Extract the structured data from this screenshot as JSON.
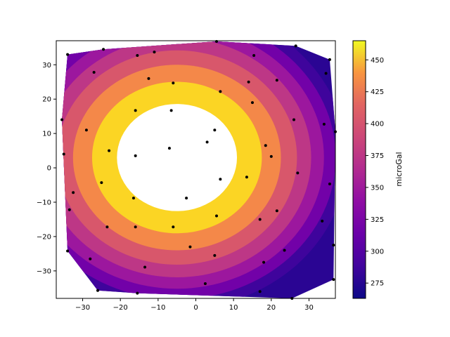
{
  "chart_data": {
    "type": "filled-contour",
    "title": "",
    "xlabel": "",
    "ylabel": "",
    "xlim": [
      -37,
      37
    ],
    "ylim": [
      -38,
      37
    ],
    "x_ticks": [
      -30,
      -20,
      -10,
      0,
      10,
      20,
      30
    ],
    "y_ticks": [
      -30,
      -20,
      -10,
      0,
      10,
      20,
      30
    ],
    "colorbar": {
      "label": "microGal",
      "colormap": "plasma",
      "range": [
        263,
        465
      ],
      "ticks": [
        275,
        300,
        325,
        350,
        375,
        400,
        425,
        450
      ]
    },
    "levels": [
      {
        "value": 290,
        "color": "#3f049c"
      },
      {
        "value": 315,
        "color": "#7201a8"
      },
      {
        "value": 340,
        "color": "#9c179e"
      },
      {
        "value": 365,
        "color": "#bd3786"
      },
      {
        "value": 390,
        "color": "#d8576b"
      },
      {
        "value": 415,
        "color": "#f48849"
      },
      {
        "value": 440,
        "color": "#fbd524"
      },
      {
        "value": 465,
        "color": "#ffffff"
      }
    ],
    "field_model": {
      "center": [
        -5,
        3
      ],
      "peak": 465,
      "edge": 265
    },
    "points": [
      [
        -34,
        33
      ],
      [
        -24.5,
        34.5
      ],
      [
        -15.5,
        32.7
      ],
      [
        -11,
        33.7
      ],
      [
        5.5,
        36.8
      ],
      [
        15.4,
        32.7
      ],
      [
        26.5,
        35.5
      ],
      [
        35.5,
        31.5
      ],
      [
        34.5,
        27.5
      ],
      [
        -27,
        27.8
      ],
      [
        -12.5,
        26
      ],
      [
        -6,
        24.7
      ],
      [
        6.5,
        22.2
      ],
      [
        14,
        25
      ],
      [
        21.5,
        25.5
      ],
      [
        -35.5,
        14
      ],
      [
        -29,
        11
      ],
      [
        -16,
        16.7
      ],
      [
        -6.5,
        16.7
      ],
      [
        15,
        19
      ],
      [
        26,
        14
      ],
      [
        34,
        12.7
      ],
      [
        37,
        10.5
      ],
      [
        -35,
        4
      ],
      [
        -23,
        5
      ],
      [
        -16,
        3.5
      ],
      [
        -7,
        5.7
      ],
      [
        3,
        7.5
      ],
      [
        5,
        11
      ],
      [
        18.5,
        6.5
      ],
      [
        20,
        3.3
      ],
      [
        27,
        -1.5
      ],
      [
        -25,
        -4.3
      ],
      [
        -16.5,
        -8.8
      ],
      [
        -2.5,
        -8.8
      ],
      [
        6.5,
        -3.3
      ],
      [
        13.5,
        -2.7
      ],
      [
        35.5,
        -4.7
      ],
      [
        -32.5,
        -7.2
      ],
      [
        -33.5,
        -12.2
      ],
      [
        -23.5,
        -17.2
      ],
      [
        -16,
        -17.2
      ],
      [
        -6,
        -17.2
      ],
      [
        5.5,
        -14
      ],
      [
        17,
        -15
      ],
      [
        21.5,
        -12.5
      ],
      [
        33.5,
        -15.5
      ],
      [
        36.5,
        -22.5
      ],
      [
        -34,
        -24.2
      ],
      [
        -28,
        -26.5
      ],
      [
        -1.5,
        -23
      ],
      [
        5,
        -25.5
      ],
      [
        18,
        -27.5
      ],
      [
        23.5,
        -24
      ],
      [
        -13.5,
        -28.9
      ],
      [
        -26,
        -35.7
      ],
      [
        -15.5,
        -36.5
      ],
      [
        2.5,
        -33.7
      ],
      [
        17,
        -36
      ],
      [
        25.5,
        -38
      ],
      [
        36.5,
        -32.5
      ]
    ]
  }
}
